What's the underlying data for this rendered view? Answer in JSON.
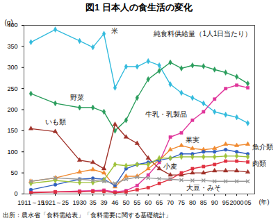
{
  "chart_data": {
    "type": "line",
    "title": "図1 日本人の食生活の変化",
    "subtitle": "純食料供給量（1人1日当たり）",
    "source": "出所：農水省「食料需給表」「食料需要に関する基礎統計」",
    "y_label": "(g)",
    "x_label": "(年)",
    "categories": [
      "1911～15",
      "1921～25",
      "1930",
      "35",
      "39",
      "46",
      "50",
      "55",
      "60",
      "65",
      "70",
      "75",
      "80",
      "85",
      "90",
      "95",
      "2000",
      "05"
    ],
    "ylim": [
      0,
      400
    ],
    "yticks": [
      0,
      50,
      100,
      150,
      200,
      250,
      300,
      350,
      400
    ],
    "grid": false,
    "series": [
      {
        "name": "米",
        "color": "#33bbdd",
        "marker": "diamond",
        "line_style": "solid",
        "values": [
          360,
          390,
          363,
          348,
          380,
          252,
          302,
          302,
          315,
          305,
          260,
          240,
          228,
          215,
          195,
          188,
          182,
          168
        ]
      },
      {
        "name": "野菜",
        "color": "#2a9d5c",
        "marker": "diamond",
        "line_style": "solid",
        "values": [
          238,
          215,
          205,
          205,
          195,
          150,
          175,
          228,
          272,
          292,
          312,
          298,
          305,
          303,
          295,
          288,
          278,
          262
        ]
      },
      {
        "name": "牛乳・乳製品",
        "color": "#e0359a",
        "marker": "square",
        "line_style": "solid",
        "values": [
          4,
          5,
          7,
          8,
          9,
          5,
          8,
          20,
          45,
          75,
          135,
          145,
          175,
          195,
          225,
          250,
          258,
          252
        ]
      },
      {
        "name": "いも類",
        "color": "#a0322a",
        "marker": "triangle",
        "line_style": "solid",
        "values": [
          155,
          148,
          80,
          75,
          60,
          165,
          135,
          120,
          85,
          60,
          45,
          45,
          50,
          50,
          55,
          55,
          55,
          52
        ]
      },
      {
        "name": "果実",
        "color": "#f08a30",
        "marker": "triangle",
        "line_style": "solid",
        "values": [
          30,
          38,
          52,
          58,
          50,
          17,
          42,
          42,
          60,
          80,
          105,
          115,
          108,
          105,
          108,
          118,
          115,
          118
        ]
      },
      {
        "name": "魚介類",
        "color": "#3060c0",
        "marker": "circle",
        "line_style": "solid",
        "values": [
          10,
          22,
          35,
          37,
          35,
          20,
          60,
          70,
          75,
          80,
          85,
          95,
          95,
          100,
          100,
          105,
          100,
          95
        ]
      },
      {
        "name": "小麦",
        "color": "#9fc23a",
        "marker": "diamond",
        "line_style": "solid",
        "values": [
          25,
          32,
          27,
          27,
          33,
          70,
          67,
          70,
          70,
          85,
          85,
          88,
          88,
          88,
          88,
          90,
          90,
          88
        ]
      },
      {
        "name": "肉類",
        "color": "#e03040",
        "marker": "square",
        "line_style": "solid",
        "values": [
          3,
          5,
          5,
          6,
          6,
          3,
          5,
          10,
          15,
          25,
          35,
          50,
          60,
          65,
          70,
          78,
          78,
          76
        ]
      },
      {
        "name": "大豆・みそ",
        "color": "#999999",
        "marker": "times",
        "line_style": "solid",
        "values": [
          30,
          38,
          35,
          32,
          30,
          25,
          35,
          40,
          38,
          36,
          35,
          33,
          32,
          32,
          30,
          30,
          30,
          30
        ]
      }
    ]
  }
}
